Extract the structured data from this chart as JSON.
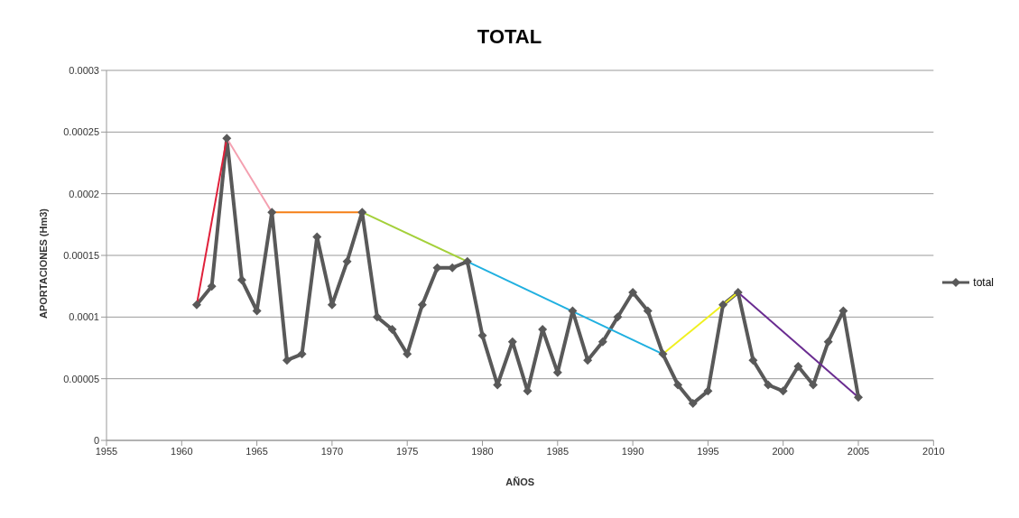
{
  "chart_data": {
    "type": "line",
    "title": "TOTAL",
    "xlabel": "AÑOS",
    "ylabel": "APORTACIONES (Hm3)",
    "x": [
      1961,
      1962,
      1963,
      1964,
      1965,
      1966,
      1967,
      1968,
      1969,
      1970,
      1971,
      1972,
      1973,
      1974,
      1975,
      1976,
      1977,
      1978,
      1979,
      1980,
      1981,
      1982,
      1983,
      1984,
      1985,
      1986,
      1987,
      1988,
      1989,
      1990,
      1991,
      1992,
      1993,
      1994,
      1995,
      1996,
      1997,
      1998,
      1999,
      2000,
      2001,
      2002,
      2003,
      2004,
      2005
    ],
    "series": [
      {
        "name": "total",
        "color": "#595959",
        "marker": "diamond",
        "values": [
          0.00011,
          0.000125,
          0.000245,
          0.00013,
          0.000105,
          0.000185,
          6.5e-05,
          7e-05,
          0.000165,
          0.00011,
          0.000145,
          0.000185,
          0.0001,
          9e-05,
          7e-05,
          0.00011,
          0.00014,
          0.00014,
          0.000145,
          8.5e-05,
          4.5e-05,
          8e-05,
          4e-05,
          9e-05,
          5.5e-05,
          0.000105,
          6.5e-05,
          8e-05,
          0.0001,
          0.00012,
          0.000105,
          7e-05,
          4.5e-05,
          3e-05,
          4e-05,
          0.00011,
          0.00012,
          6.5e-05,
          4.5e-05,
          4e-05,
          6e-05,
          4.5e-05,
          8e-05,
          0.000105,
          3.5e-05
        ]
      },
      {
        "color": "#e0203a",
        "marker": "none",
        "x": [
          1961,
          1963
        ],
        "values": [
          0.00011,
          0.000245
        ]
      },
      {
        "color": "#f4a0b0",
        "marker": "none",
        "x": [
          1963,
          1966
        ],
        "values": [
          0.000245,
          0.000185
        ]
      },
      {
        "color": "#f57f17",
        "marker": "none",
        "x": [
          1966,
          1972
        ],
        "values": [
          0.000185,
          0.000185
        ]
      },
      {
        "color": "#a4d03a",
        "marker": "none",
        "x": [
          1972,
          1979
        ],
        "values": [
          0.000185,
          0.000145
        ]
      },
      {
        "color": "#20b0e0",
        "marker": "none",
        "x": [
          1979,
          1992
        ],
        "values": [
          0.000145,
          7e-05
        ]
      },
      {
        "color": "#f0f020",
        "marker": "none",
        "x": [
          1992,
          1997
        ],
        "values": [
          7e-05,
          0.00012
        ]
      },
      {
        "color": "#6a2c91",
        "marker": "none",
        "x": [
          1997,
          2005
        ],
        "values": [
          0.00012,
          3.5e-05
        ]
      }
    ],
    "xlim": [
      1955,
      2010
    ],
    "xticks": [
      1955,
      1960,
      1965,
      1970,
      1975,
      1980,
      1985,
      1990,
      1995,
      2000,
      2005,
      2010
    ],
    "ylim": [
      0,
      0.0003
    ],
    "yticks": [
      0,
      {
        "value": 5e-05,
        "label": "0.00005"
      },
      0.0001,
      0.00015,
      0.0002,
      0.00025,
      0.0003
    ],
    "grid": "y",
    "legend": "right",
    "line_style": "solid"
  }
}
